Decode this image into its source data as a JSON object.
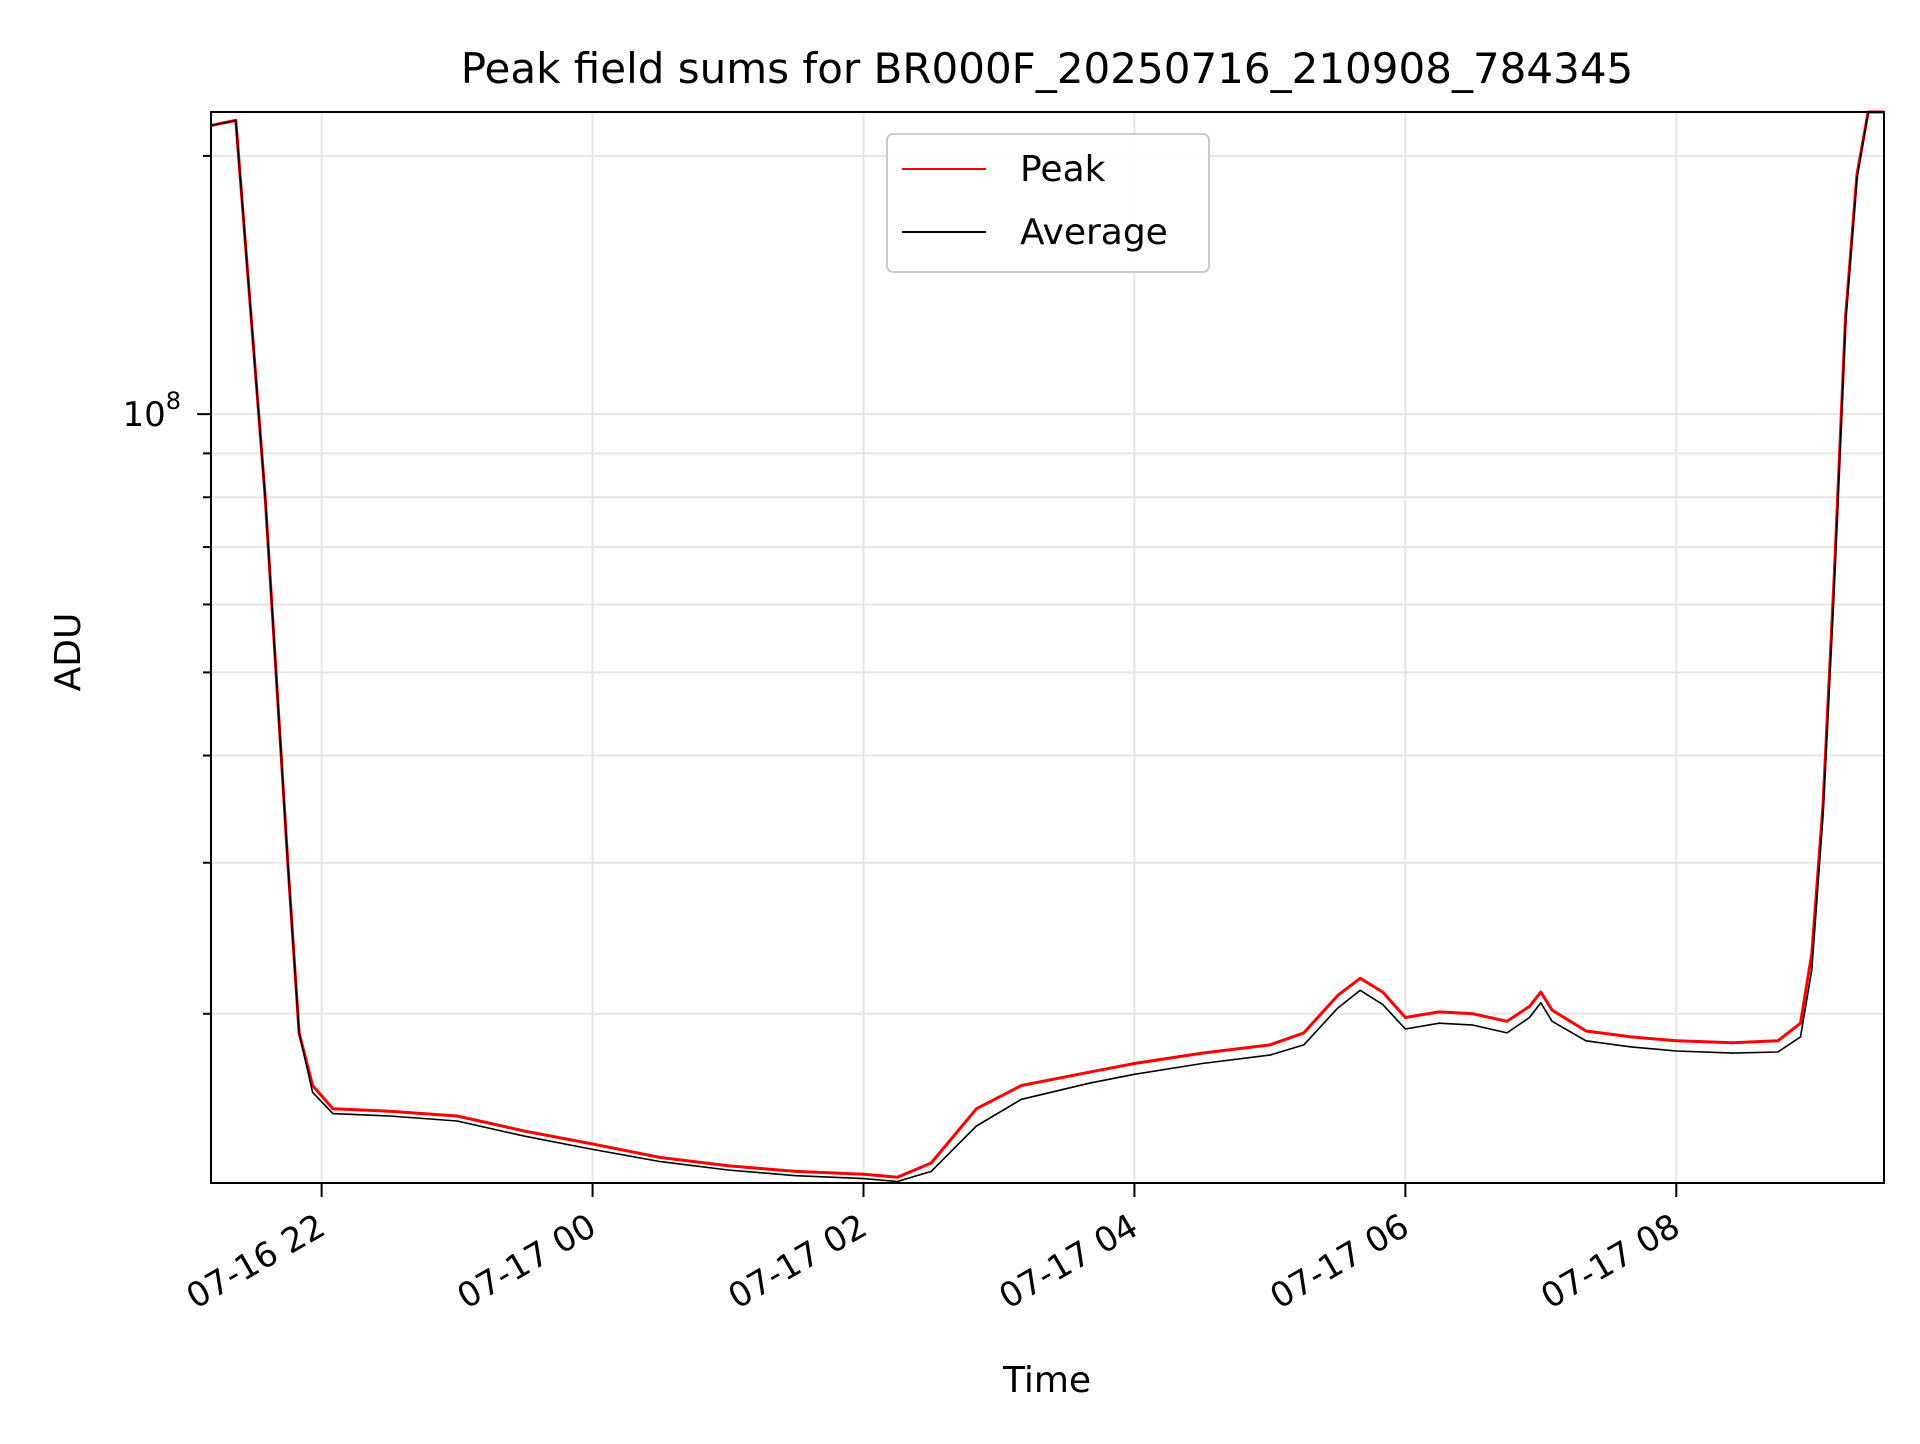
{
  "chart_data": {
    "type": "line",
    "title": "Peak field sums for BR000F_20250716_210908_784345",
    "xlabel": "Time",
    "ylabel": "ADU",
    "yscale": "log",
    "xlim": [
      "2025-07-16 21:11",
      "2025-07-17 09:32"
    ],
    "ylim": [
      12700000,
      225000000
    ],
    "x_ticks": [
      {
        "value": "2025-07-16 22:00",
        "label": "07-16 22"
      },
      {
        "value": "2025-07-17 00:00",
        "label": "07-17 00"
      },
      {
        "value": "2025-07-17 02:00",
        "label": "07-17 02"
      },
      {
        "value": "2025-07-17 04:00",
        "label": "07-17 04"
      },
      {
        "value": "2025-07-17 06:00",
        "label": "07-17 06"
      },
      {
        "value": "2025-07-17 08:00",
        "label": "07-17 08"
      }
    ],
    "y_ticks": [
      {
        "value": 100000000,
        "base": "10",
        "exponent": "8"
      }
    ],
    "y_minor_ticks": [
      20000000,
      30000000,
      40000000,
      50000000,
      60000000,
      70000000,
      80000000,
      90000000,
      200000000
    ],
    "grid": true,
    "legend_position": "upper-center",
    "series": [
      {
        "name": "Peak",
        "color": "#ff0000",
        "x": [
          "2025-07-16 21:11",
          "2025-07-16 21:22",
          "2025-07-16 21:35",
          "2025-07-16 21:45",
          "2025-07-16 21:50",
          "2025-07-16 21:56",
          "2025-07-16 22:05",
          "2025-07-16 22:30",
          "2025-07-16 23:00",
          "2025-07-16 23:30",
          "2025-07-17 00:00",
          "2025-07-17 00:30",
          "2025-07-17 01:00",
          "2025-07-17 01:30",
          "2025-07-17 02:00",
          "2025-07-17 02:15",
          "2025-07-17 02:30",
          "2025-07-17 02:50",
          "2025-07-17 03:10",
          "2025-07-17 03:40",
          "2025-07-17 04:00",
          "2025-07-17 04:30",
          "2025-07-17 05:00",
          "2025-07-17 05:15",
          "2025-07-17 05:30",
          "2025-07-17 05:40",
          "2025-07-17 05:50",
          "2025-07-17 06:00",
          "2025-07-17 06:15",
          "2025-07-17 06:30",
          "2025-07-17 06:45",
          "2025-07-17 06:55",
          "2025-07-17 07:00",
          "2025-07-17 07:05",
          "2025-07-17 07:20",
          "2025-07-17 07:40",
          "2025-07-17 08:00",
          "2025-07-17 08:25",
          "2025-07-17 08:45",
          "2025-07-17 08:55",
          "2025-07-17 09:00",
          "2025-07-17 09:05",
          "2025-07-17 09:10",
          "2025-07-17 09:15",
          "2025-07-17 09:20",
          "2025-07-17 09:25",
          "2025-07-17 09:32"
        ],
        "values": [
          217000000,
          220000000,
          80000000,
          30000000,
          19000000,
          16500000,
          15500000,
          15400000,
          15200000,
          14600000,
          14100000,
          13600000,
          13300000,
          13100000,
          13000000,
          12900000,
          13400000,
          15500000,
          16500000,
          17100000,
          17500000,
          18000000,
          18400000,
          19000000,
          21000000,
          22000000,
          21200000,
          19800000,
          20100000,
          20000000,
          19600000,
          20400000,
          21200000,
          20200000,
          19100000,
          18800000,
          18600000,
          18500000,
          18600000,
          19500000,
          23500000,
          35000000,
          65000000,
          130000000,
          190000000,
          225000000,
          225000000
        ]
      },
      {
        "name": "Average",
        "color": "#000000",
        "x": [
          "2025-07-16 21:11",
          "2025-07-16 21:22",
          "2025-07-16 21:35",
          "2025-07-16 21:45",
          "2025-07-16 21:50",
          "2025-07-16 21:56",
          "2025-07-16 22:05",
          "2025-07-16 22:30",
          "2025-07-16 23:00",
          "2025-07-16 23:30",
          "2025-07-17 00:00",
          "2025-07-17 00:30",
          "2025-07-17 01:00",
          "2025-07-17 01:30",
          "2025-07-17 02:00",
          "2025-07-17 02:15",
          "2025-07-17 02:30",
          "2025-07-17 02:50",
          "2025-07-17 03:10",
          "2025-07-17 03:40",
          "2025-07-17 04:00",
          "2025-07-17 04:30",
          "2025-07-17 05:00",
          "2025-07-17 05:15",
          "2025-07-17 05:30",
          "2025-07-17 05:40",
          "2025-07-17 05:50",
          "2025-07-17 06:00",
          "2025-07-17 06:15",
          "2025-07-17 06:30",
          "2025-07-17 06:45",
          "2025-07-17 06:55",
          "2025-07-17 07:00",
          "2025-07-17 07:05",
          "2025-07-17 07:20",
          "2025-07-17 07:40",
          "2025-07-17 08:00",
          "2025-07-17 08:25",
          "2025-07-17 08:45",
          "2025-07-17 08:55",
          "2025-07-17 09:00",
          "2025-07-17 09:05",
          "2025-07-17 09:10",
          "2025-07-17 09:15",
          "2025-07-17 09:20",
          "2025-07-17 09:25",
          "2025-07-17 09:32"
        ],
        "values": [
          217000000,
          220000000,
          80000000,
          30000000,
          19000000,
          16200000,
          15300000,
          15200000,
          15000000,
          14400000,
          13900000,
          13450000,
          13150000,
          12950000,
          12850000,
          12750000,
          13100000,
          14800000,
          15900000,
          16600000,
          17000000,
          17500000,
          17900000,
          18400000,
          20300000,
          21300000,
          20500000,
          19200000,
          19500000,
          19400000,
          19000000,
          19800000,
          20600000,
          19600000,
          18600000,
          18300000,
          18100000,
          18000000,
          18050000,
          18800000,
          22500000,
          34000000,
          63000000,
          128000000,
          188000000,
          225000000,
          225000000
        ]
      }
    ]
  }
}
